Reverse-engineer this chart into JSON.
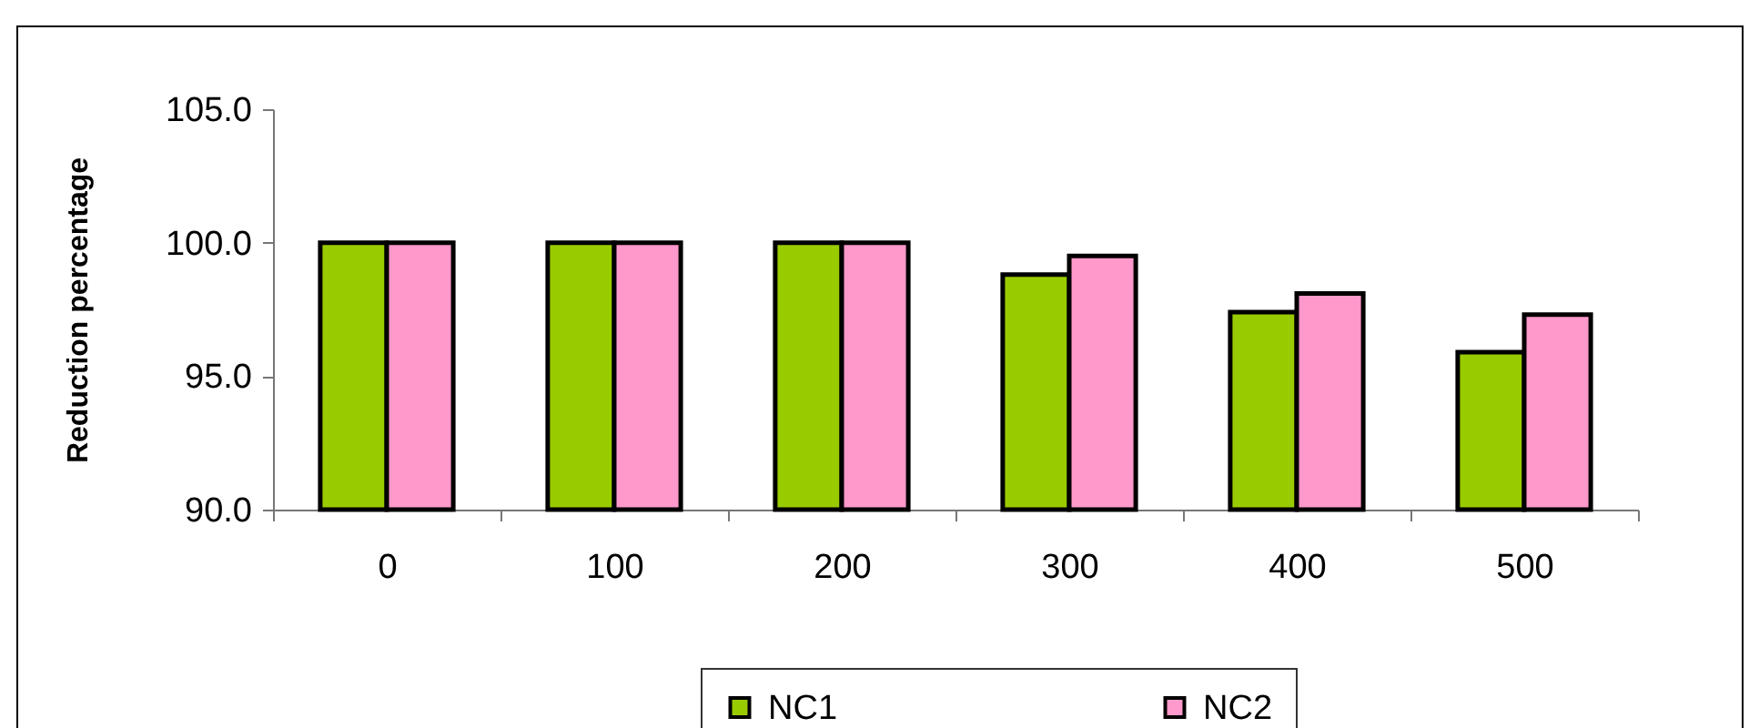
{
  "chart_data": {
    "type": "bar",
    "ylabel": "Reduction percentage",
    "categories": [
      "0",
      "100",
      "200",
      "300",
      "400",
      "500"
    ],
    "series": [
      {
        "name": "NC1",
        "color": "#99cc00",
        "values": [
          100,
          100,
          100,
          98.8,
          97.4,
          95.9
        ]
      },
      {
        "name": "NC2",
        "color": "#ff99cc",
        "values": [
          100,
          100,
          100,
          99.5,
          98.1,
          97.3
        ]
      }
    ],
    "ylim": [
      90,
      105
    ],
    "yticks": [
      {
        "value": 90,
        "label": "90.0"
      },
      {
        "value": 95,
        "label": "95.0"
      },
      {
        "value": 100,
        "label": "100.0"
      },
      {
        "value": 105,
        "label": "105.0"
      }
    ],
    "grid": false,
    "legend": "bottom"
  }
}
